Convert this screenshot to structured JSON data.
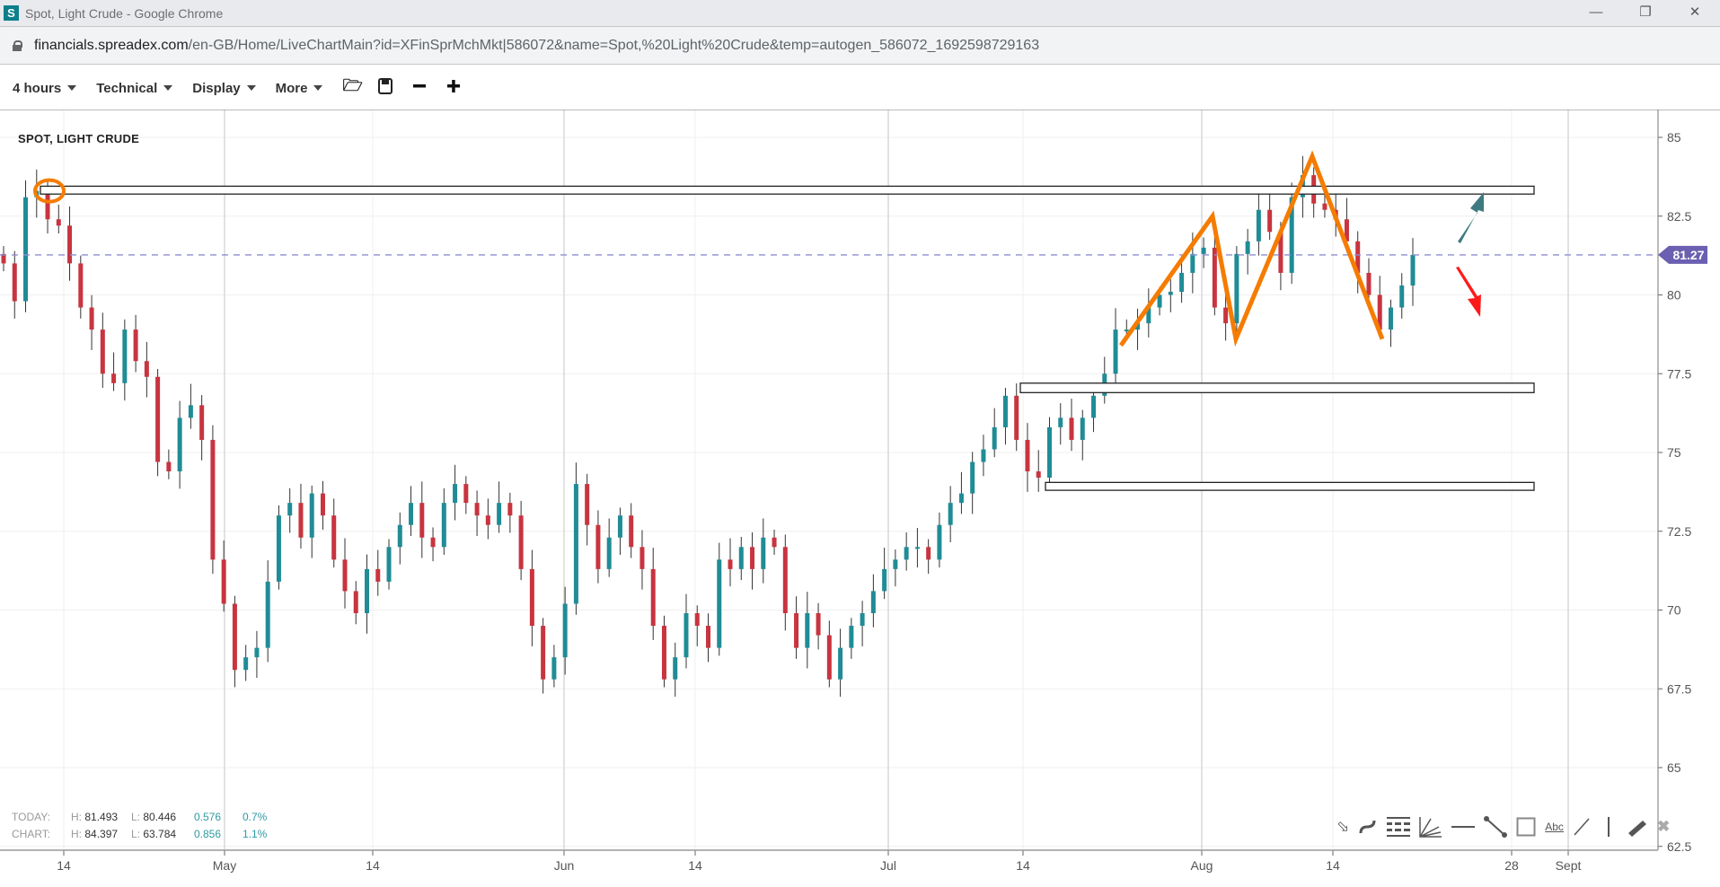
{
  "window": {
    "title": "Spot, Light Crude - Google Chrome",
    "favicon": "S",
    "controls": [
      "minimize-icon",
      "restore-icon",
      "close-icon"
    ]
  },
  "address": {
    "domain": "financials.spreadex.com",
    "path": "/en-GB/Home/LiveChartMain?id=XFinSprMchMkt|586072&name=Spot,%20Light%20Crude&temp=autogen_586072_1692598729163"
  },
  "toolbar": {
    "menus": [
      "4 hours",
      "Technical",
      "Display",
      "More"
    ],
    "icons": [
      "folder-open-icon",
      "save-icon",
      "zoom-out-icon",
      "zoom-in-icon"
    ]
  },
  "chart": {
    "title": "SPOT, LIGHT CRUDE",
    "current_price": "81.27"
  },
  "stats": {
    "today": {
      "label": "TODAY:",
      "h_label": "H:",
      "h": "81.493",
      "l_label": "L:",
      "l": "80.446",
      "change": "0.576",
      "pct": "0.7%"
    },
    "chart": {
      "label": "CHART:",
      "h_label": "H:",
      "h": "84.397",
      "l_label": "L:",
      "l": "63.784",
      "change": "0.856",
      "pct": "1.1%"
    }
  },
  "tools": [
    "arrow-tool-icon",
    "curve-tool-icon",
    "fibonacci-tool-icon",
    "fan-tool-icon",
    "horizontal-line-tool-icon",
    "trend-line-tool-icon",
    "rectangle-tool-icon",
    "text-tool-icon",
    "ray-tool-icon",
    "vertical-line-tool-icon",
    "ruler-tool-icon",
    "delete-drawings-icon"
  ],
  "tools_text": {
    "text_tool": "Abc"
  },
  "colors": {
    "up": "#1f8c96",
    "down": "#c8343f",
    "price_line": "#8e8ed0",
    "price_badge": "#6a5fb0",
    "annotation": "#f57c00",
    "arrow_up": "#3f7a80",
    "arrow_down": "#ff1a1a"
  },
  "chart_data": {
    "type": "candlestick",
    "ylim": [
      62.5,
      85
    ],
    "yticks": [
      "85",
      "82.5",
      "80",
      "77.5",
      "75",
      "72.5",
      "70",
      "67.5",
      "65",
      "62.5"
    ],
    "xticks": [
      "14",
      "May",
      "14",
      "Jun",
      "14",
      "Jul",
      "14",
      "Aug",
      "14",
      "28",
      "Sept"
    ],
    "closes": [
      81.0,
      79.8,
      83.1,
      83.3,
      82.4,
      82.2,
      81.0,
      79.6,
      78.9,
      77.5,
      77.2,
      78.9,
      77.9,
      77.4,
      74.7,
      74.4,
      76.1,
      76.5,
      75.4,
      71.6,
      70.2,
      68.1,
      68.5,
      68.8,
      70.9,
      73.0,
      73.4,
      72.3,
      73.7,
      73.0,
      71.6,
      70.6,
      69.9,
      71.3,
      70.9,
      72.0,
      72.7,
      73.4,
      72.3,
      72.0,
      73.4,
      74.0,
      73.4,
      73.0,
      72.7,
      73.4,
      73.0,
      71.3,
      69.5,
      67.8,
      68.5,
      70.2,
      74.0,
      72.7,
      71.3,
      72.3,
      73.0,
      72.0,
      71.3,
      69.5,
      67.8,
      68.5,
      69.9,
      69.5,
      68.8,
      71.6,
      71.3,
      72.0,
      71.3,
      72.3,
      72.0,
      69.9,
      68.8,
      69.9,
      69.2,
      67.8,
      68.8,
      69.5,
      69.9,
      70.6,
      71.3,
      71.6,
      72.0,
      72.0,
      71.6,
      72.7,
      73.4,
      73.7,
      74.7,
      75.1,
      75.8,
      76.8,
      75.4,
      74.4,
      74.2,
      75.8,
      76.1,
      75.4,
      76.1,
      76.8,
      77.5,
      78.9,
      78.9,
      79.1,
      79.6,
      80.0,
      80.1,
      80.7,
      81.3,
      81.5,
      79.6,
      79.1,
      81.3,
      81.7,
      82.7,
      82.0,
      80.7,
      83.1,
      83.8,
      82.9,
      82.7,
      82.4,
      81.7,
      80.7,
      80.0,
      78.9,
      79.6,
      80.3,
      81.27
    ],
    "annotations": {
      "zones": [
        [
          83.2,
          83.45
        ],
        [
          76.9,
          77.2
        ],
        [
          73.8,
          74.05
        ]
      ],
      "zigzag": [
        78.4,
        82.5,
        78.6,
        84.4,
        78.6
      ],
      "circle_price": 83.3
    }
  }
}
